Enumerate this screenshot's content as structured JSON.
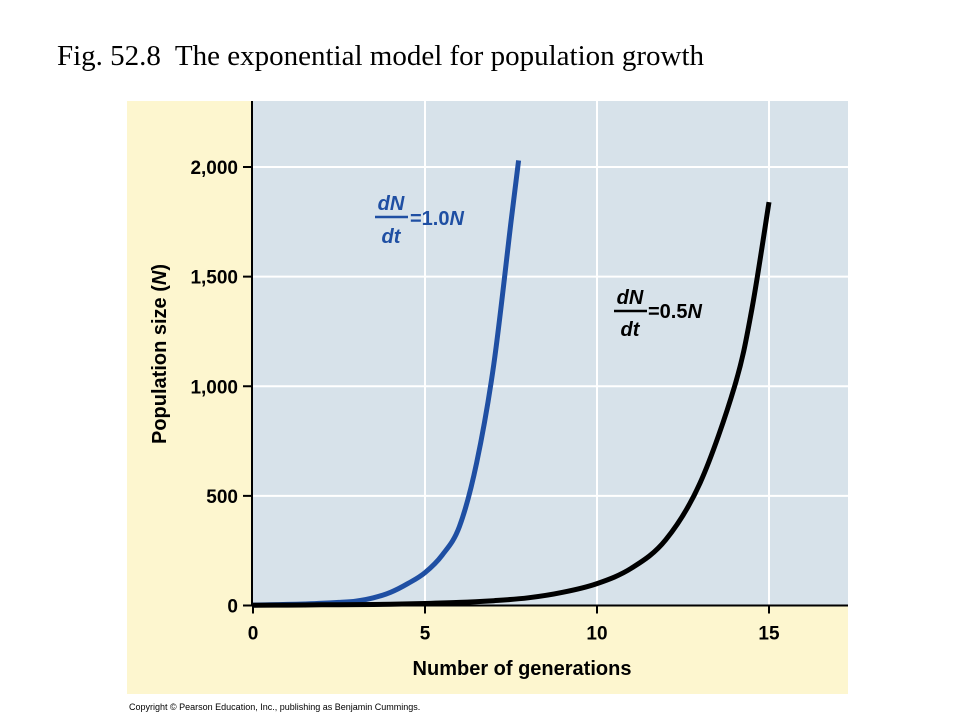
{
  "slide": {
    "title": "Fig. 52.8  The exponential model for population growth",
    "copyright": "Copyright © Pearson Education, Inc., publishing as Benjamin Cummings."
  },
  "chart_data": {
    "type": "line",
    "xlabel": "Number of generations",
    "ylabel_main": "Population size (",
    "ylabel_var": "N",
    "ylabel_close": ")",
    "xlim": [
      0,
      17.5
    ],
    "ylim": [
      0,
      2250
    ],
    "x_ticks": [
      0,
      5,
      10,
      15
    ],
    "x_tick_labels": [
      "0",
      "5",
      "10",
      "15"
    ],
    "y_ticks": [
      0,
      500,
      1000,
      1500,
      2000
    ],
    "y_tick_labels": [
      "0",
      "500",
      "1,000",
      "1,500",
      "2,000"
    ],
    "grid": true,
    "colors": {
      "panel_bg": "#fdf6cf",
      "plot_bg": "#d7e2ea",
      "grid": "#ffffff",
      "series_fast": "#1f4fa3",
      "series_slow": "#000000"
    },
    "series": [
      {
        "annotation": {
          "numerator": "dN",
          "denominator": "dt",
          "rhs_prefix": "=1.0",
          "rhs_var": "N"
        },
        "color": "#1f4fa3",
        "x": [
          0,
          0.5,
          1,
          1.5,
          2,
          2.5,
          3,
          3.5,
          4,
          4.5,
          5,
          5.5,
          6,
          6.5,
          7,
          7.5,
          7.72
        ],
        "y": [
          2,
          3,
          5,
          7,
          10,
          14,
          20,
          35,
          60,
          100,
          150,
          230,
          360,
          650,
          1100,
          1750,
          2030
        ]
      },
      {
        "annotation": {
          "numerator": "dN",
          "denominator": "dt",
          "rhs_prefix": "=0.5",
          "rhs_var": "N"
        },
        "color": "#000000",
        "x": [
          0,
          1,
          2,
          3,
          4,
          5,
          6,
          7,
          8,
          9,
          10,
          11,
          12,
          13,
          14,
          14.5,
          15
        ],
        "y": [
          1,
          2,
          3,
          4,
          6,
          9,
          14,
          22,
          35,
          60,
          100,
          170,
          300,
          560,
          1000,
          1350,
          1840
        ]
      }
    ]
  }
}
